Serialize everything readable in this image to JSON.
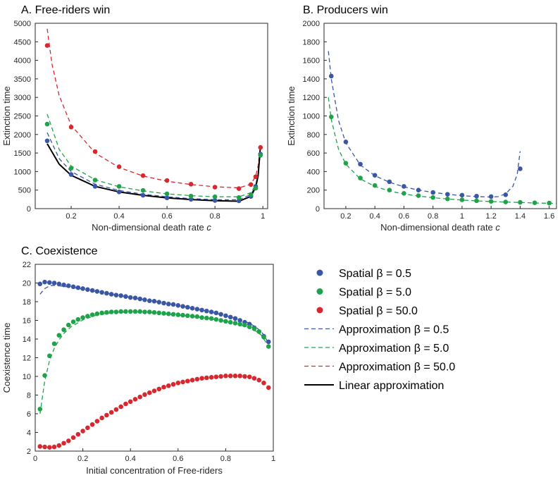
{
  "colors": {
    "blue": "#3a56a5",
    "green": "#1fa34a",
    "red": "#d7282f",
    "black": "#000000"
  },
  "chart_data": [
    {
      "type": "scatter",
      "title": "A. Free-riders win",
      "xlabel": "Non-dimensional death rate ",
      "xlabel_var": "c",
      "ylabel": "Extinction time",
      "xlim": [
        0.05,
        1.02
      ],
      "ylim": [
        0,
        5000
      ],
      "xticks": [
        0.2,
        0.4,
        0.6,
        0.8,
        1
      ],
      "xtick_labels": [
        "0.2",
        "0.4",
        "0.6",
        "0.8",
        "1"
      ],
      "yticks": [
        0,
        500,
        1000,
        1500,
        2000,
        2500,
        3000,
        3500,
        4000,
        4500,
        5000
      ],
      "ytick_labels": [
        "0",
        "500",
        "1000",
        "1500",
        "2000",
        "2500",
        "3000",
        "3500",
        "4000",
        "4500",
        "5000"
      ],
      "series": [
        {
          "name": "Spatial β = 0.5",
          "kind": "points",
          "color": "blue",
          "x": [
            0.1,
            0.2,
            0.3,
            0.4,
            0.5,
            0.6,
            0.7,
            0.8,
            0.9,
            0.95,
            0.97,
            0.99
          ],
          "y": [
            1830,
            920,
            600,
            450,
            360,
            290,
            250,
            220,
            210,
            330,
            600,
            1470
          ]
        },
        {
          "name": "Spatial β = 5.0",
          "kind": "points",
          "color": "green",
          "x": [
            0.1,
            0.2,
            0.3,
            0.4,
            0.5,
            0.6,
            0.7,
            0.8,
            0.9,
            0.95,
            0.97,
            0.99
          ],
          "y": [
            2280,
            1090,
            770,
            600,
            490,
            400,
            340,
            320,
            300,
            380,
            550,
            1440
          ]
        },
        {
          "name": "Spatial β = 50.0",
          "kind": "points",
          "color": "red",
          "x": [
            0.1,
            0.2,
            0.3,
            0.4,
            0.5,
            0.6,
            0.7,
            0.8,
            0.9,
            0.95,
            0.97,
            0.99
          ],
          "y": [
            4400,
            2200,
            1540,
            1130,
            890,
            760,
            660,
            580,
            540,
            650,
            860,
            1650
          ]
        },
        {
          "name": "Approximation β = 0.5",
          "kind": "dashed",
          "color": "blue",
          "x": [
            0.1,
            0.15,
            0.2,
            0.3,
            0.4,
            0.5,
            0.6,
            0.7,
            0.8,
            0.9,
            0.95,
            0.97,
            0.98,
            0.99
          ],
          "y": [
            2050,
            1350,
            1000,
            660,
            490,
            390,
            320,
            270,
            240,
            240,
            380,
            620,
            900,
            1500
          ]
        },
        {
          "name": "Approximation β = 5.0",
          "kind": "dashed",
          "color": "green",
          "x": [
            0.1,
            0.15,
            0.2,
            0.3,
            0.4,
            0.5,
            0.6,
            0.7,
            0.8,
            0.9,
            0.95,
            0.97,
            0.98,
            0.99
          ],
          "y": [
            2550,
            1600,
            1150,
            780,
            590,
            480,
            400,
            350,
            320,
            320,
            430,
            650,
            920,
            1520
          ]
        },
        {
          "name": "Approximation β = 50.0",
          "kind": "dashed",
          "color": "red",
          "x": [
            0.1,
            0.12,
            0.15,
            0.2,
            0.3,
            0.4,
            0.5,
            0.6,
            0.7,
            0.8,
            0.9,
            0.95,
            0.97,
            0.98,
            0.99
          ],
          "y": [
            4850,
            3900,
            3050,
            2250,
            1500,
            1110,
            880,
            740,
            650,
            590,
            560,
            660,
            880,
            1150,
            1700
          ]
        },
        {
          "name": "Linear approximation",
          "kind": "solid",
          "color": "black",
          "x": [
            0.1,
            0.15,
            0.2,
            0.3,
            0.4,
            0.5,
            0.6,
            0.7,
            0.8,
            0.9,
            0.95,
            0.97,
            0.98,
            0.99
          ],
          "y": [
            1750,
            1200,
            900,
            600,
            450,
            360,
            290,
            245,
            215,
            200,
            330,
            580,
            880,
            1700
          ]
        }
      ]
    },
    {
      "type": "scatter",
      "title": "B. Producers win",
      "xlabel": "Non-dimensional death rate ",
      "xlabel_var": "c",
      "ylabel": "Extinction time",
      "xlim": [
        0.05,
        1.65
      ],
      "ylim": [
        0,
        2000
      ],
      "xticks": [
        0.2,
        0.4,
        0.6,
        0.8,
        1,
        1.2,
        1.4,
        1.6
      ],
      "xtick_labels": [
        "0.2",
        "0.4",
        "0.6",
        "0.8",
        "1",
        "1.2",
        "1.4",
        "1.6"
      ],
      "yticks": [
        0,
        200,
        400,
        600,
        800,
        1000,
        1200,
        1400,
        1600,
        1800,
        2000
      ],
      "ytick_labels": [
        "0",
        "200",
        "400",
        "600",
        "800",
        "1000",
        "1200",
        "1400",
        "1600",
        "1800",
        "2000"
      ],
      "series": [
        {
          "name": "Spatial β = 0.5",
          "kind": "points",
          "color": "blue",
          "x": [
            0.1,
            0.2,
            0.3,
            0.4,
            0.5,
            0.6,
            0.7,
            0.8,
            0.9,
            1.0,
            1.1,
            1.2,
            1.3,
            1.4
          ],
          "y": [
            1430,
            720,
            480,
            360,
            290,
            240,
            200,
            175,
            155,
            145,
            135,
            130,
            150,
            430
          ]
        },
        {
          "name": "Spatial β = 5.0",
          "kind": "points",
          "color": "green",
          "x": [
            0.1,
            0.2,
            0.3,
            0.4,
            0.5,
            0.6,
            0.7,
            0.8,
            0.9,
            1.0,
            1.1,
            1.2,
            1.3,
            1.4,
            1.5,
            1.6
          ],
          "y": [
            990,
            490,
            330,
            250,
            200,
            165,
            140,
            120,
            105,
            95,
            85,
            78,
            72,
            68,
            63,
            60
          ]
        },
        {
          "name": "Approximation β = 0.5",
          "kind": "dashed",
          "color": "blue",
          "x": [
            0.08,
            0.1,
            0.15,
            0.2,
            0.3,
            0.4,
            0.5,
            0.6,
            0.7,
            0.8,
            0.9,
            1.0,
            1.1,
            1.2,
            1.25,
            1.3,
            1.35,
            1.38,
            1.4
          ],
          "y": [
            1700,
            1400,
            950,
            710,
            470,
            355,
            285,
            235,
            200,
            175,
            155,
            140,
            130,
            125,
            130,
            160,
            240,
            370,
            620
          ]
        },
        {
          "name": "Approximation β = 5.0",
          "kind": "dashed",
          "color": "green",
          "x": [
            0.08,
            0.1,
            0.15,
            0.2,
            0.3,
            0.4,
            0.5,
            0.6,
            0.7,
            0.8,
            0.9,
            1.0,
            1.1,
            1.2,
            1.3,
            1.4,
            1.5,
            1.65
          ],
          "y": [
            1200,
            960,
            640,
            480,
            320,
            240,
            190,
            158,
            135,
            118,
            104,
            93,
            84,
            77,
            71,
            66,
            61,
            56
          ]
        }
      ]
    },
    {
      "type": "scatter",
      "title": "C. Coexistence",
      "xlabel": "Initial concentration of Free-riders",
      "ylabel": "Coexistence time",
      "xlim": [
        0,
        1
      ],
      "ylim": [
        2,
        22
      ],
      "xticks": [
        0,
        0.2,
        0.4,
        0.6,
        0.8,
        1
      ],
      "xtick_labels": [
        "0",
        "0.2",
        "0.4",
        "0.6",
        "0.8",
        "1"
      ],
      "yticks": [
        2,
        4,
        6,
        8,
        10,
        12,
        14,
        16,
        18,
        20,
        22
      ],
      "ytick_labels": [
        "2",
        "4",
        "6",
        "8",
        "10",
        "12",
        "14",
        "16",
        "18",
        "20",
        "22"
      ],
      "series": [
        {
          "name": "Spatial β = 0.5",
          "kind": "points",
          "color": "blue",
          "x": [
            0.02,
            0.04,
            0.06,
            0.08,
            0.1,
            0.12,
            0.14,
            0.16,
            0.18,
            0.2,
            0.22,
            0.24,
            0.26,
            0.28,
            0.3,
            0.32,
            0.34,
            0.36,
            0.38,
            0.4,
            0.42,
            0.44,
            0.46,
            0.48,
            0.5,
            0.52,
            0.54,
            0.56,
            0.58,
            0.6,
            0.62,
            0.64,
            0.66,
            0.68,
            0.7,
            0.72,
            0.74,
            0.76,
            0.78,
            0.8,
            0.82,
            0.84,
            0.86,
            0.88,
            0.9,
            0.92,
            0.94,
            0.96,
            0.98
          ],
          "y": [
            19.9,
            20.1,
            20.05,
            20.0,
            19.9,
            19.8,
            19.7,
            19.6,
            19.5,
            19.4,
            19.3,
            19.2,
            19.1,
            19.0,
            18.9,
            18.8,
            18.7,
            18.65,
            18.55,
            18.45,
            18.4,
            18.3,
            18.2,
            18.1,
            18.05,
            17.95,
            17.85,
            17.75,
            17.7,
            17.6,
            17.5,
            17.4,
            17.3,
            17.2,
            17.1,
            17.0,
            16.9,
            16.8,
            16.65,
            16.5,
            16.35,
            16.2,
            16.0,
            15.8,
            15.6,
            15.2,
            14.8,
            14.3,
            13.7
          ]
        },
        {
          "name": "Spatial β = 5.0",
          "kind": "points",
          "color": "green",
          "x": [
            0.02,
            0.04,
            0.06,
            0.08,
            0.1,
            0.12,
            0.14,
            0.16,
            0.18,
            0.2,
            0.22,
            0.24,
            0.26,
            0.28,
            0.3,
            0.32,
            0.34,
            0.36,
            0.38,
            0.4,
            0.42,
            0.44,
            0.46,
            0.48,
            0.5,
            0.52,
            0.54,
            0.56,
            0.58,
            0.6,
            0.62,
            0.64,
            0.66,
            0.68,
            0.7,
            0.72,
            0.74,
            0.76,
            0.78,
            0.8,
            0.82,
            0.84,
            0.86,
            0.88,
            0.9,
            0.92,
            0.94,
            0.96,
            0.98
          ],
          "y": [
            6.5,
            10.1,
            12.2,
            13.5,
            14.4,
            15.0,
            15.5,
            15.85,
            16.1,
            16.3,
            16.45,
            16.6,
            16.7,
            16.8,
            16.85,
            16.9,
            16.9,
            16.95,
            16.95,
            16.95,
            16.95,
            16.95,
            16.9,
            16.9,
            16.85,
            16.8,
            16.75,
            16.7,
            16.65,
            16.6,
            16.55,
            16.5,
            16.45,
            16.4,
            16.3,
            16.25,
            16.2,
            16.1,
            16.0,
            15.9,
            15.8,
            15.7,
            15.6,
            15.5,
            15.3,
            15.1,
            14.8,
            14.2,
            13.2
          ]
        },
        {
          "name": "Spatial β = 50.0",
          "kind": "points",
          "color": "red",
          "x": [
            0.02,
            0.04,
            0.06,
            0.08,
            0.1,
            0.12,
            0.14,
            0.16,
            0.18,
            0.2,
            0.22,
            0.24,
            0.26,
            0.28,
            0.3,
            0.32,
            0.34,
            0.36,
            0.38,
            0.4,
            0.42,
            0.44,
            0.46,
            0.48,
            0.5,
            0.52,
            0.54,
            0.56,
            0.58,
            0.6,
            0.62,
            0.64,
            0.66,
            0.68,
            0.7,
            0.72,
            0.74,
            0.76,
            0.78,
            0.8,
            0.82,
            0.84,
            0.86,
            0.88,
            0.9,
            0.92,
            0.94,
            0.96,
            0.98
          ],
          "y": [
            2.5,
            2.45,
            2.4,
            2.45,
            2.6,
            2.85,
            3.1,
            3.45,
            3.8,
            4.15,
            4.5,
            4.85,
            5.2,
            5.55,
            5.85,
            6.15,
            6.45,
            6.75,
            7.05,
            7.3,
            7.55,
            7.8,
            8.05,
            8.25,
            8.45,
            8.65,
            8.85,
            9.0,
            9.15,
            9.3,
            9.4,
            9.5,
            9.6,
            9.7,
            9.8,
            9.85,
            9.9,
            9.95,
            10.0,
            10.05,
            10.05,
            10.05,
            10.05,
            10.0,
            9.95,
            9.8,
            9.6,
            9.3,
            8.8
          ]
        },
        {
          "name": "Approximation β = 0.5",
          "kind": "dashed",
          "color": "blue",
          "x": [
            0.02,
            0.04,
            0.06,
            0.08,
            0.1,
            0.15,
            0.2,
            0.3,
            0.4,
            0.5,
            0.6,
            0.7,
            0.8,
            0.85,
            0.9,
            0.93,
            0.95,
            0.97,
            0.98
          ],
          "y": [
            18.8,
            19.4,
            19.7,
            19.75,
            19.7,
            19.55,
            19.35,
            18.9,
            18.45,
            18.05,
            17.6,
            17.1,
            16.5,
            16.15,
            15.7,
            15.2,
            14.8,
            14.0,
            13.4
          ]
        },
        {
          "name": "Approximation β = 5.0",
          "kind": "dashed",
          "color": "green",
          "x": [
            0.02,
            0.04,
            0.06,
            0.08,
            0.1,
            0.12,
            0.15,
            0.2,
            0.25,
            0.3,
            0.35,
            0.4,
            0.5,
            0.6,
            0.7,
            0.8,
            0.85,
            0.9,
            0.93,
            0.95,
            0.97,
            0.98
          ],
          "y": [
            6.0,
            9.5,
            11.7,
            13.0,
            13.9,
            14.6,
            15.3,
            16.05,
            16.5,
            16.75,
            16.85,
            16.9,
            16.8,
            16.55,
            16.3,
            15.9,
            15.6,
            15.2,
            14.8,
            14.4,
            13.6,
            13.0
          ]
        },
        {
          "name": "Approximation β = 50.0",
          "kind": "dashed",
          "color": "red",
          "x": [],
          "y": []
        }
      ]
    }
  ],
  "legend": [
    {
      "label": "Spatial β = 0.5",
      "kind": "points",
      "color": "blue"
    },
    {
      "label": "Spatial β = 5.0",
      "kind": "points",
      "color": "green"
    },
    {
      "label": "Spatial β = 50.0",
      "kind": "points",
      "color": "red"
    },
    {
      "label": "Approximation β = 0.5",
      "kind": "dashed",
      "color": "blue"
    },
    {
      "label": "Approximation β = 5.0",
      "kind": "dashed",
      "color": "green"
    },
    {
      "label": "Approximation β = 50.0",
      "kind": "dashed",
      "color": "red"
    },
    {
      "label": "Linear approximation",
      "kind": "solid",
      "color": "black"
    }
  ]
}
